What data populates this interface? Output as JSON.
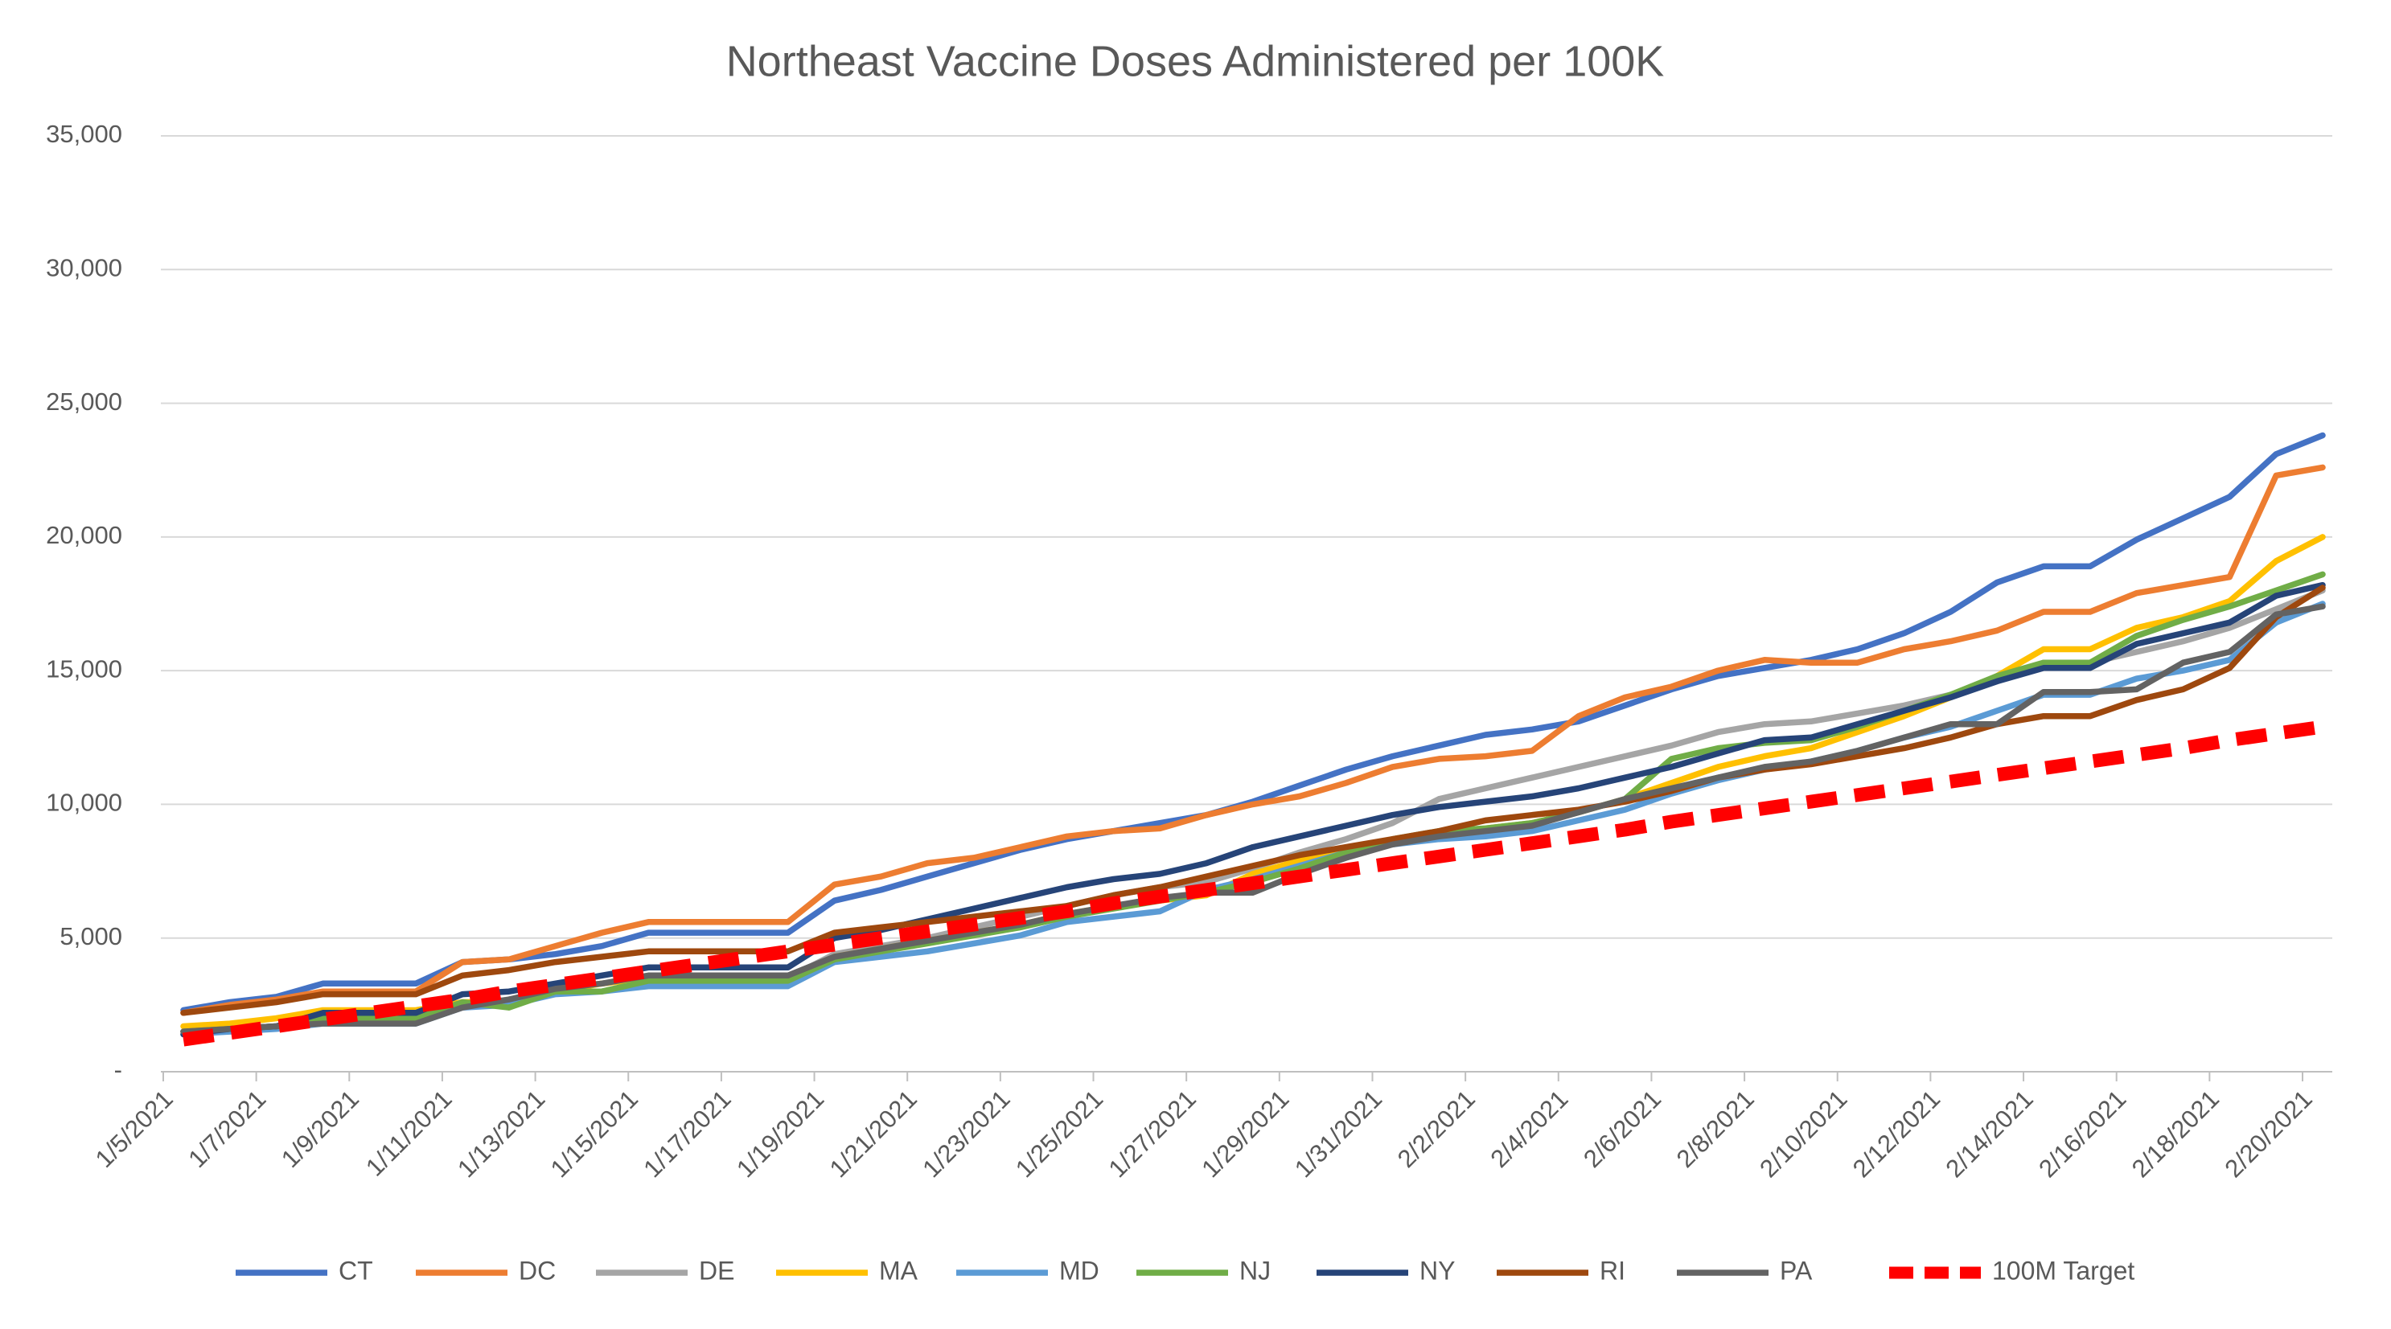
{
  "chart_data": {
    "type": "line",
    "title": "Northeast Vaccine Doses Administered per 100K",
    "categories": [
      "1/5/2021",
      null,
      "1/7/2021",
      null,
      "1/9/2021",
      null,
      "1/11/2021",
      null,
      "1/13/2021",
      null,
      "1/15/2021",
      null,
      "1/17/2021",
      null,
      "1/19/2021",
      null,
      "1/21/2021",
      null,
      "1/23/2021",
      null,
      "1/25/2021",
      null,
      "1/27/2021",
      null,
      "1/29/2021",
      null,
      "1/31/2021",
      null,
      "2/2/2021",
      null,
      "2/4/2021",
      null,
      "2/6/2021",
      null,
      "2/8/2021",
      null,
      "2/10/2021",
      null,
      "2/12/2021",
      null,
      "2/14/2021",
      null,
      "2/16/2021",
      null,
      "2/18/2021",
      null,
      "2/20/2021"
    ],
    "ylim": [
      0,
      35000
    ],
    "yticks": [
      {
        "value": 0,
        "label": "-"
      },
      {
        "value": 5000,
        "label": "5,000"
      },
      {
        "value": 10000,
        "label": "10,000"
      },
      {
        "value": 15000,
        "label": "15,000"
      },
      {
        "value": 20000,
        "label": "20,000"
      },
      {
        "value": 25000,
        "label": "25,000"
      },
      {
        "value": 30000,
        "label": "30,000"
      },
      {
        "value": 35000,
        "label": "35,000"
      }
    ],
    "grid": true,
    "legend": "bottom",
    "series": [
      {
        "name": "CT",
        "color": "#4472c4",
        "values": [
          2300,
          2600,
          2800,
          3300,
          3300,
          3300,
          4100,
          4200,
          4400,
          4700,
          5200,
          5200,
          5200,
          5200,
          6400,
          6800,
          7300,
          7800,
          8300,
          8700,
          9000,
          9300,
          9600,
          10100,
          10700,
          11300,
          11800,
          12200,
          12600,
          12800,
          13100,
          13700,
          14300,
          14800,
          15100,
          15400,
          15800,
          16400,
          17200,
          18300,
          18900,
          18900,
          19900,
          20700,
          21500,
          23100,
          23800
        ]
      },
      {
        "name": "DC",
        "color": "#ed7d31",
        "values": [
          2200,
          2500,
          2700,
          3000,
          3000,
          3000,
          4100,
          4200,
          4700,
          5200,
          5600,
          5600,
          5600,
          5600,
          7000,
          7300,
          7800,
          8000,
          8400,
          8800,
          9000,
          9100,
          9600,
          10000,
          10300,
          10800,
          11400,
          11700,
          11800,
          12000,
          13300,
          14000,
          14400,
          15000,
          15400,
          15300,
          15300,
          15800,
          16100,
          16500,
          17200,
          17200,
          17900,
          18200,
          18500,
          22300,
          22600
        ]
      },
      {
        "name": "DE",
        "color": "#a5a5a5",
        "values": [
          1500,
          1600,
          1700,
          2000,
          2000,
          2000,
          2500,
          2700,
          3100,
          3300,
          3500,
          3500,
          3500,
          3500,
          4400,
          4700,
          5000,
          5400,
          5800,
          6200,
          6600,
          6900,
          7100,
          7600,
          8200,
          8700,
          9300,
          10200,
          10600,
          11000,
          11400,
          11800,
          12200,
          12700,
          13000,
          13100,
          13400,
          13700,
          14100,
          14600,
          15300,
          15300,
          15700,
          16100,
          16600,
          17300,
          18000
        ]
      },
      {
        "name": "MA",
        "color": "#ffc000",
        "values": [
          1700,
          1800,
          2000,
          2300,
          2300,
          2300,
          2600,
          2600,
          3000,
          3300,
          3500,
          3500,
          3500,
          3500,
          4300,
          4600,
          4900,
          5200,
          5500,
          5900,
          6200,
          6400,
          6600,
          7400,
          7900,
          8200,
          8600,
          8900,
          9100,
          9300,
          9700,
          10200,
          10800,
          11400,
          11800,
          12100,
          12700,
          13300,
          14000,
          14800,
          15800,
          15800,
          16600,
          17000,
          17600,
          19100,
          20000
        ]
      },
      {
        "name": "MD",
        "color": "#5b9bd5",
        "values": [
          1400,
          1500,
          1600,
          1800,
          1800,
          1800,
          2400,
          2500,
          2900,
          3000,
          3200,
          3200,
          3200,
          3200,
          4100,
          4300,
          4500,
          4800,
          5100,
          5600,
          5800,
          6000,
          6800,
          7200,
          7700,
          8200,
          8500,
          8700,
          8800,
          9000,
          9400,
          9800,
          10400,
          10900,
          11300,
          11600,
          12000,
          12500,
          12900,
          13500,
          14100,
          14100,
          14700,
          15000,
          15400,
          16800,
          17500
        ]
      },
      {
        "name": "NJ",
        "color": "#70ad47",
        "values": [
          1500,
          1600,
          1700,
          2000,
          2000,
          2000,
          2600,
          2400,
          3000,
          3000,
          3400,
          3400,
          3400,
          3400,
          4200,
          4500,
          4800,
          5100,
          5400,
          5800,
          6100,
          6400,
          6700,
          7100,
          7600,
          8200,
          8700,
          9000,
          9100,
          9300,
          9700,
          10200,
          11700,
          12100,
          12300,
          12400,
          12900,
          13500,
          14100,
          14800,
          15300,
          15300,
          16300,
          16900,
          17400,
          18000,
          18600
        ]
      },
      {
        "name": "NY",
        "color": "#264478",
        "values": [
          1400,
          1600,
          1700,
          2200,
          2200,
          2200,
          2900,
          3000,
          3300,
          3600,
          3900,
          3900,
          3900,
          3900,
          5000,
          5300,
          5700,
          6100,
          6500,
          6900,
          7200,
          7400,
          7800,
          8400,
          8800,
          9200,
          9600,
          9900,
          10100,
          10300,
          10600,
          11000,
          11400,
          11900,
          12400,
          12500,
          13000,
          13500,
          14000,
          14600,
          15100,
          15100,
          16000,
          16400,
          16800,
          17800,
          18200
        ]
      },
      {
        "name": "RI",
        "color": "#9e480e",
        "values": [
          2200,
          2400,
          2600,
          2900,
          2900,
          2900,
          3600,
          3800,
          4100,
          4300,
          4500,
          4500,
          4500,
          4500,
          5200,
          5400,
          5600,
          5800,
          6000,
          6200,
          6600,
          6900,
          7300,
          7700,
          8100,
          8400,
          8700,
          9000,
          9400,
          9600,
          9800,
          10100,
          10500,
          11000,
          11300,
          11500,
          11800,
          12100,
          12500,
          13000,
          13300,
          13300,
          13900,
          14300,
          15100,
          17000,
          18100
        ]
      },
      {
        "name": "PA",
        "color": "#636363",
        "values": [
          1500,
          1600,
          1700,
          1800,
          1800,
          1800,
          2400,
          2700,
          3100,
          3300,
          3600,
          3600,
          3600,
          3600,
          4300,
          4600,
          4900,
          5200,
          5500,
          5900,
          6200,
          6500,
          6700,
          6700,
          7400,
          8000,
          8500,
          8800,
          9000,
          9200,
          9700,
          10200,
          10600,
          11000,
          11400,
          11600,
          12000,
          12500,
          13000,
          13000,
          14200,
          14200,
          14300,
          15300,
          15700,
          17100,
          17400
        ]
      },
      {
        "name": "100M Target",
        "color": "#ff0000",
        "line_style": "dashed",
        "values": [
          1200,
          1450,
          1700,
          1950,
          2200,
          2450,
          2700,
          3000,
          3250,
          3500,
          3750,
          4000,
          4250,
          4500,
          4750,
          5000,
          5250,
          5500,
          5750,
          6000,
          6300,
          6550,
          6800,
          7050,
          7300,
          7550,
          7800,
          8050,
          8300,
          8550,
          8800,
          9050,
          9350,
          9600,
          9850,
          10100,
          10350,
          10600,
          10850,
          11100,
          11350,
          11600,
          11850,
          12100,
          12400,
          12650,
          12900
        ]
      }
    ]
  }
}
